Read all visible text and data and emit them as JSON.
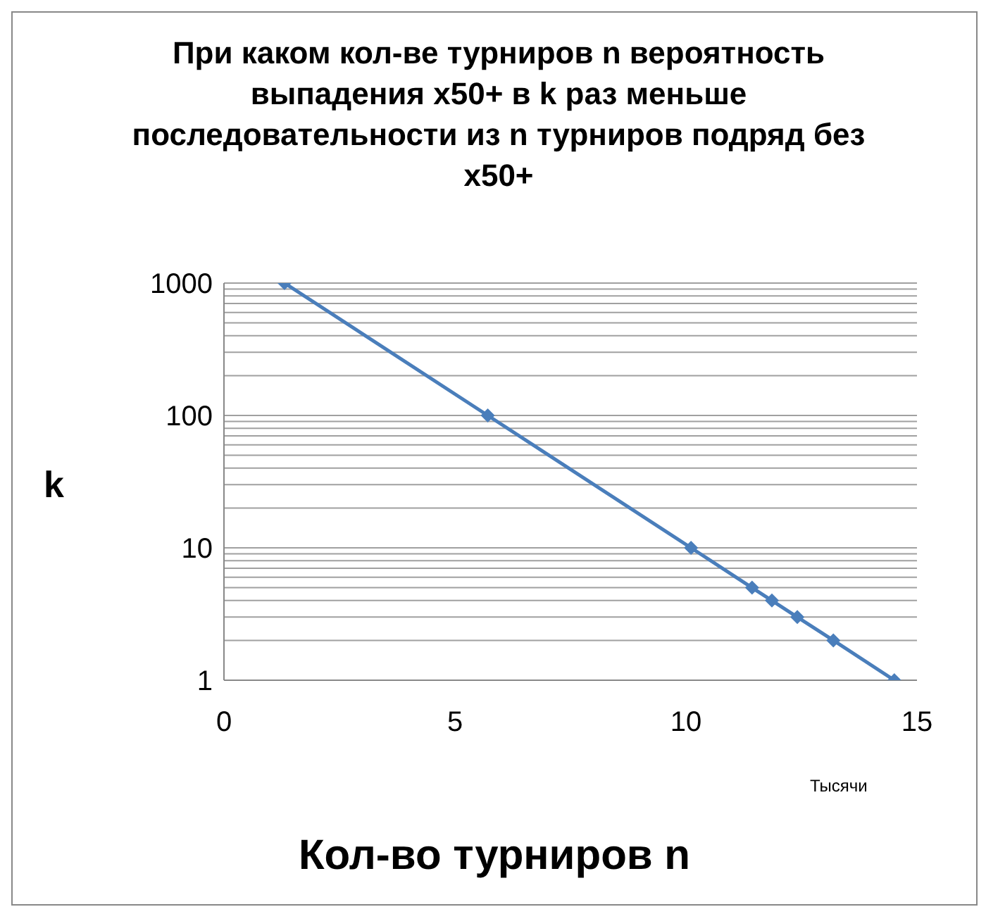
{
  "chart_data": {
    "type": "line",
    "title": "При каком кол-ве турниров n вероятность выпадения x50+ в k раз меньше последовательности из n турниров подряд без x50+",
    "xlabel": "Кол-во турниров n",
    "ylabel": "k",
    "annotations": [
      "Тысячи"
    ],
    "series": [
      {
        "color": "#4a7ebb",
        "x": [
          1.31,
          5.71,
          10.11,
          11.43,
          11.86,
          12.41,
          13.19,
          14.51
        ],
        "values": [
          1000,
          100,
          10,
          5,
          4,
          3,
          2,
          1
        ]
      }
    ],
    "xlim": [
      0,
      15
    ],
    "xticks": [
      0,
      5,
      10,
      15
    ],
    "ylim": [
      1,
      1000
    ],
    "yticks": [
      1,
      {
        "value": 2,
        "label": null
      },
      {
        "value": 3,
        "label": null
      },
      {
        "value": 4,
        "label": null
      },
      {
        "value": 5,
        "label": null
      },
      {
        "value": 6,
        "label": null
      },
      {
        "value": 7,
        "label": null
      },
      {
        "value": 8,
        "label": null
      },
      {
        "value": 9,
        "label": null
      },
      10,
      {
        "value": 20,
        "label": null
      },
      {
        "value": 30,
        "label": null
      },
      {
        "value": 40,
        "label": null
      },
      {
        "value": 50,
        "label": null
      },
      {
        "value": 60,
        "label": null
      },
      {
        "value": 70,
        "label": null
      },
      {
        "value": 80,
        "label": null
      },
      {
        "value": 90,
        "label": null
      },
      100,
      {
        "value": 200,
        "label": null
      },
      {
        "value": 300,
        "label": null
      },
      {
        "value": 400,
        "label": null
      },
      {
        "value": 500,
        "label": null
      },
      {
        "value": 600,
        "label": null
      },
      {
        "value": 700,
        "label": null
      },
      {
        "value": 800,
        "label": null
      },
      {
        "value": 900,
        "label": null
      },
      1000
    ],
    "log": true,
    "grid": "y",
    "legend": false,
    "marker": "diamond",
    "line_style": "solid"
  }
}
